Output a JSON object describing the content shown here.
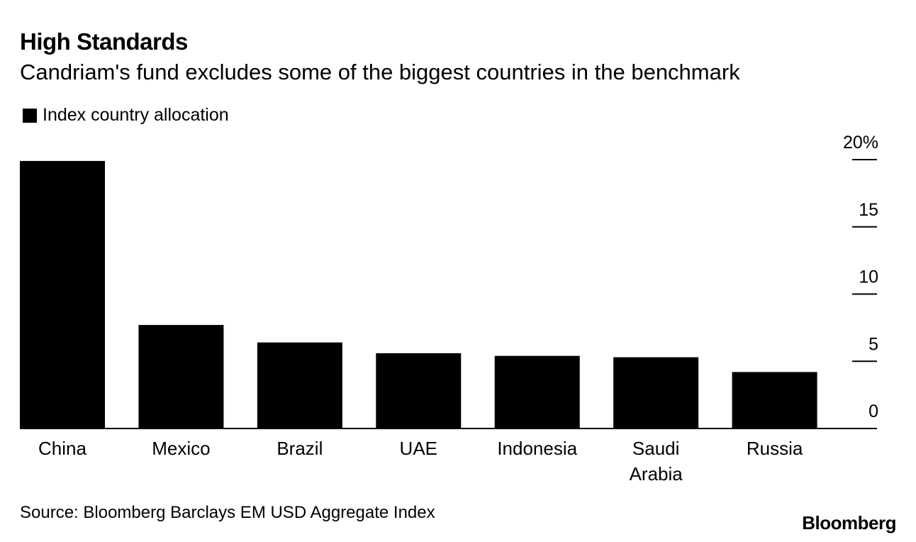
{
  "header": {
    "title": "High Standards",
    "subtitle": "Candriam's fund excludes some of the biggest countries in the benchmark"
  },
  "legend": {
    "label": "Index country allocation"
  },
  "footer": {
    "source": "Source: Bloomberg Barclays EM USD Aggregate Index",
    "brand": "Bloomberg"
  },
  "colors": {
    "bar": "#000000",
    "axis": "#000000",
    "background": "#ffffff"
  },
  "chart_data": {
    "type": "bar",
    "title": "High Standards",
    "subtitle": "Candriam's fund excludes some of the biggest countries in the benchmark",
    "categories": [
      "China",
      "Mexico",
      "Brazil",
      "UAE",
      "Indonesia",
      "Saudi Arabia",
      "Russia"
    ],
    "category_lines": [
      [
        "China"
      ],
      [
        "Mexico"
      ],
      [
        "Brazil"
      ],
      [
        "UAE"
      ],
      [
        "Indonesia"
      ],
      [
        "Saudi",
        "Arabia"
      ],
      [
        "Russia"
      ]
    ],
    "series": [
      {
        "name": "Index country allocation",
        "values": [
          19.9,
          7.7,
          6.4,
          5.6,
          5.4,
          5.3,
          4.2
        ]
      }
    ],
    "ylim": [
      0,
      20
    ],
    "yticks": [
      0,
      5,
      10,
      15,
      20
    ],
    "ytick_labels": [
      "0",
      "5",
      "10",
      "15",
      "20%"
    ],
    "xlabel": "",
    "ylabel": "",
    "y_axis_position": "right",
    "grid": false
  }
}
